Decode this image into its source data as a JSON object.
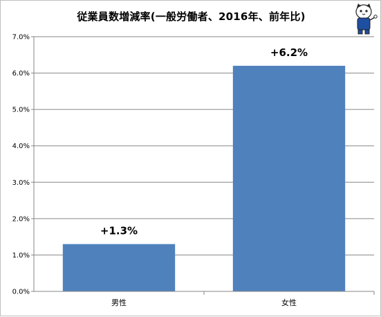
{
  "chart_data": {
    "type": "bar",
    "title": "従業員数増減率(一般労働者、2016年、前年比)",
    "categories": [
      "男性",
      "女性"
    ],
    "values": [
      1.3,
      6.2
    ],
    "data_labels": [
      "+1.3%",
      "+6.2%"
    ],
    "ylim": [
      0,
      7.0
    ],
    "yticks": [
      "0.0%",
      "1.0%",
      "2.0%",
      "3.0%",
      "4.0%",
      "5.0%",
      "6.0%",
      "7.0%"
    ],
    "ytick_values": [
      0,
      1,
      2,
      3,
      4,
      5,
      6,
      7
    ],
    "xlabel": "",
    "ylabel": "",
    "grid": true,
    "legend": "none",
    "bar_color": "#4f81bd"
  },
  "mascot_icon": "cat-mascot-icon"
}
